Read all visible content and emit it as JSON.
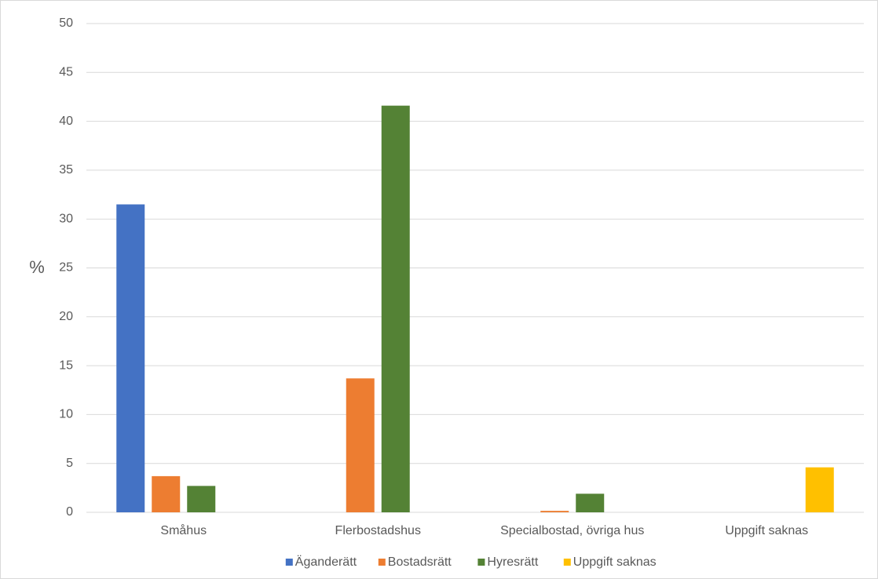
{
  "chart_data": {
    "type": "bar",
    "y_label": "%",
    "categories": [
      "Småhus",
      "Flerbostadshus",
      "Specialbostad, övriga hus",
      "Uppgift saknas"
    ],
    "series": [
      {
        "name": "Äganderätt",
        "color": "#4472c4",
        "values": [
          31.5,
          0,
          0,
          0
        ]
      },
      {
        "name": "Bostadsrätt",
        "color": "#ed7d31",
        "values": [
          3.7,
          13.7,
          0.15,
          0
        ]
      },
      {
        "name": "Hyresrätt",
        "color": "#548235",
        "values": [
          2.7,
          41.6,
          1.9,
          0
        ]
      },
      {
        "name": "Uppgift saknas",
        "color": "#ffc000",
        "values": [
          0,
          0,
          0,
          4.6
        ]
      }
    ],
    "ylim": [
      0,
      50
    ],
    "yticks": [
      0,
      5,
      10,
      15,
      20,
      25,
      30,
      35,
      40,
      45,
      50
    ],
    "grid": true,
    "legend": "bottom"
  }
}
